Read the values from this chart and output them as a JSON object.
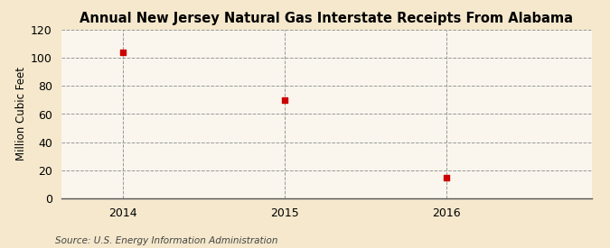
{
  "title": "Annual New Jersey Natural Gas Interstate Receipts From Alabama",
  "ylabel": "Million Cubic Feet",
  "source": "Source: U.S. Energy Information Administration",
  "x": [
    2014,
    2015,
    2016
  ],
  "y": [
    104,
    70,
    15
  ],
  "marker_color": "#cc0000",
  "marker_size": 4,
  "ylim": [
    0,
    120
  ],
  "yticks": [
    0,
    20,
    40,
    60,
    80,
    100,
    120
  ],
  "xlim": [
    2013.62,
    2016.9
  ],
  "xticks": [
    2014,
    2015,
    2016
  ],
  "background_color": "#f5e8cc",
  "plot_bg_color": "#faf6ed",
  "grid_color": "#999999",
  "spine_color": "#555555",
  "title_fontsize": 10.5,
  "label_fontsize": 8.5,
  "tick_fontsize": 9,
  "source_fontsize": 7.5
}
